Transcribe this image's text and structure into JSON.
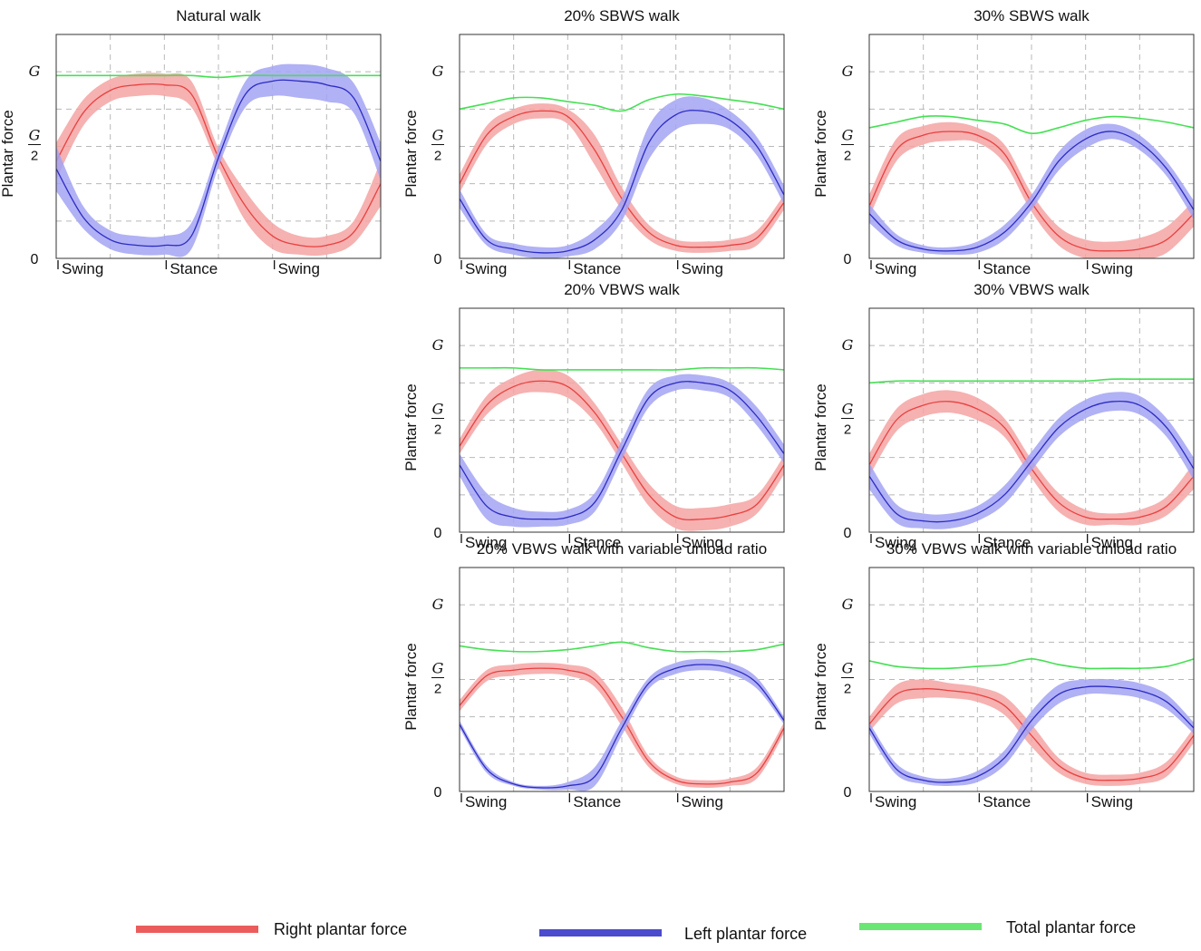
{
  "axis_labels": {
    "ylabel": "Plantar force",
    "y_top": "G",
    "y_mid_num": "G",
    "y_mid_den": "2",
    "y_zero": "0",
    "phases": [
      "Swing",
      "Stance",
      "Swing"
    ]
  },
  "colors": {
    "right": "#e8413f",
    "right_band": "#f4a3a3",
    "left": "#2c2cc4",
    "left_band": "#a3a3f3",
    "total": "#45e053",
    "grid": "#b8b8b8"
  },
  "legend": [
    {
      "key": "right",
      "label": "Right plantar force"
    },
    {
      "key": "left",
      "label": "Left plantar force"
    },
    {
      "key": "total",
      "label": "Total plantar force"
    }
  ],
  "chart_data": [
    {
      "type": "line",
      "title": "Natural walk",
      "xlabel": "",
      "ylabel": "Plantar force",
      "x": [
        0,
        0.25,
        0.5,
        0.75,
        1.0,
        1.25,
        1.5,
        1.75,
        2.0,
        2.25,
        2.5,
        2.75,
        3.0
      ],
      "xlim": [
        0,
        3
      ],
      "ylim": [
        0,
        1.2
      ],
      "series": [
        {
          "name": "Right plantar force",
          "values": [
            0.52,
            0.78,
            0.9,
            0.93,
            0.93,
            0.88,
            0.54,
            0.28,
            0.12,
            0.07,
            0.07,
            0.14,
            0.4
          ],
          "band": [
            0.1,
            0.07,
            0.06,
            0.06,
            0.06,
            0.07,
            0.05,
            0.08,
            0.07,
            0.05,
            0.05,
            0.06,
            0.12
          ]
        },
        {
          "name": "Left plantar force",
          "values": [
            0.48,
            0.22,
            0.1,
            0.07,
            0.07,
            0.12,
            0.54,
            0.88,
            0.95,
            0.95,
            0.93,
            0.86,
            0.52
          ],
          "band": [
            0.12,
            0.06,
            0.05,
            0.05,
            0.05,
            0.07,
            0.05,
            0.07,
            0.08,
            0.09,
            0.09,
            0.08,
            0.1
          ]
        },
        {
          "name": "Total plantar force",
          "values": [
            0.98,
            0.98,
            0.98,
            0.98,
            0.98,
            0.98,
            0.97,
            0.98,
            0.98,
            0.98,
            0.98,
            0.98,
            0.98
          ],
          "band": [
            0,
            0,
            0,
            0,
            0,
            0,
            0,
            0,
            0,
            0,
            0,
            0,
            0
          ]
        }
      ]
    },
    {
      "type": "line",
      "title": "20% SBWS walk",
      "xlabel": "",
      "ylabel": "Plantar force",
      "x": [
        0,
        0.25,
        0.5,
        0.75,
        1.0,
        1.25,
        1.5,
        1.75,
        2.0,
        2.25,
        2.5,
        2.75,
        3.0
      ],
      "xlim": [
        0,
        3
      ],
      "ylim": [
        0,
        1.2
      ],
      "series": [
        {
          "name": "Right plantar force",
          "values": [
            0.4,
            0.66,
            0.76,
            0.79,
            0.76,
            0.58,
            0.32,
            0.14,
            0.07,
            0.06,
            0.07,
            0.11,
            0.3
          ],
          "band": [
            0.05,
            0.05,
            0.04,
            0.04,
            0.04,
            0.08,
            0.06,
            0.04,
            0.03,
            0.03,
            0.03,
            0.04,
            0.04
          ]
        },
        {
          "name": "Left plantar force",
          "values": [
            0.32,
            0.1,
            0.05,
            0.03,
            0.04,
            0.1,
            0.26,
            0.62,
            0.77,
            0.79,
            0.74,
            0.6,
            0.34
          ],
          "band": [
            0.05,
            0.03,
            0.03,
            0.03,
            0.03,
            0.05,
            0.06,
            0.09,
            0.08,
            0.07,
            0.05,
            0.05,
            0.05
          ]
        },
        {
          "name": "Total plantar force",
          "values": [
            0.8,
            0.83,
            0.86,
            0.86,
            0.84,
            0.82,
            0.79,
            0.85,
            0.88,
            0.87,
            0.85,
            0.83,
            0.8
          ],
          "band": [
            0,
            0,
            0,
            0,
            0,
            0,
            0,
            0,
            0,
            0,
            0,
            0,
            0
          ]
        }
      ]
    },
    {
      "type": "line",
      "title": "30% SBWS walk",
      "xlabel": "",
      "ylabel": "Plantar force",
      "x": [
        0,
        0.25,
        0.5,
        0.75,
        1.0,
        1.25,
        1.5,
        1.75,
        2.0,
        2.25,
        2.5,
        2.75,
        3.0
      ],
      "xlim": [
        0,
        3
      ],
      "ylim": [
        0,
        1.2
      ],
      "series": [
        {
          "name": "Right plantar force",
          "values": [
            0.28,
            0.58,
            0.66,
            0.68,
            0.66,
            0.56,
            0.3,
            0.12,
            0.05,
            0.04,
            0.05,
            0.1,
            0.24
          ],
          "band": [
            0.06,
            0.06,
            0.05,
            0.05,
            0.04,
            0.05,
            0.05,
            0.05,
            0.05,
            0.05,
            0.06,
            0.07,
            0.07
          ]
        },
        {
          "name": "Left plantar force",
          "values": [
            0.24,
            0.1,
            0.05,
            0.04,
            0.06,
            0.14,
            0.3,
            0.52,
            0.64,
            0.68,
            0.62,
            0.48,
            0.26
          ],
          "band": [
            0.05,
            0.03,
            0.02,
            0.02,
            0.03,
            0.04,
            0.04,
            0.05,
            0.05,
            0.04,
            0.04,
            0.04,
            0.05
          ]
        },
        {
          "name": "Total plantar force",
          "values": [
            0.7,
            0.73,
            0.76,
            0.76,
            0.74,
            0.72,
            0.67,
            0.7,
            0.74,
            0.76,
            0.75,
            0.73,
            0.7
          ],
          "band": [
            0,
            0,
            0,
            0,
            0,
            0,
            0,
            0,
            0,
            0,
            0,
            0,
            0
          ]
        }
      ]
    },
    {
      "type": "line",
      "title": "20% VBWS walk",
      "xlabel": "",
      "ylabel": "Plantar force",
      "x": [
        0,
        0.25,
        0.5,
        0.75,
        1.0,
        1.25,
        1.5,
        1.75,
        2.0,
        2.25,
        2.5,
        2.75,
        3.0
      ],
      "xlim": [
        0,
        3
      ],
      "ylim": [
        0,
        1.2
      ],
      "series": [
        {
          "name": "Right plantar force",
          "values": [
            0.46,
            0.68,
            0.78,
            0.81,
            0.78,
            0.64,
            0.42,
            0.2,
            0.08,
            0.07,
            0.09,
            0.15,
            0.36
          ],
          "band": [
            0.04,
            0.05,
            0.05,
            0.06,
            0.06,
            0.05,
            0.05,
            0.06,
            0.06,
            0.06,
            0.06,
            0.05,
            0.05
          ]
        },
        {
          "name": "Left plantar force",
          "values": [
            0.36,
            0.14,
            0.08,
            0.07,
            0.08,
            0.16,
            0.44,
            0.72,
            0.8,
            0.8,
            0.76,
            0.62,
            0.42
          ],
          "band": [
            0.06,
            0.07,
            0.05,
            0.04,
            0.04,
            0.05,
            0.05,
            0.05,
            0.04,
            0.04,
            0.04,
            0.05,
            0.05
          ]
        },
        {
          "name": "Total plantar force",
          "values": [
            0.88,
            0.88,
            0.88,
            0.87,
            0.87,
            0.87,
            0.87,
            0.87,
            0.87,
            0.88,
            0.88,
            0.88,
            0.87
          ],
          "band": [
            0,
            0,
            0,
            0,
            0,
            0,
            0,
            0,
            0,
            0,
            0,
            0,
            0
          ]
        }
      ]
    },
    {
      "type": "line",
      "title": "30% VBWS walk",
      "xlabel": "",
      "ylabel": "Plantar force",
      "x": [
        0,
        0.25,
        0.5,
        0.75,
        1.0,
        1.25,
        1.5,
        1.75,
        2.0,
        2.25,
        2.5,
        2.75,
        3.0
      ],
      "xlim": [
        0,
        3
      ],
      "ylim": [
        0,
        1.2
      ],
      "series": [
        {
          "name": "Right plantar force",
          "values": [
            0.36,
            0.6,
            0.68,
            0.7,
            0.66,
            0.56,
            0.34,
            0.16,
            0.08,
            0.07,
            0.08,
            0.14,
            0.3
          ],
          "band": [
            0.06,
            0.06,
            0.06,
            0.06,
            0.06,
            0.05,
            0.05,
            0.05,
            0.04,
            0.03,
            0.04,
            0.05,
            0.07
          ]
        },
        {
          "name": "Left plantar force",
          "values": [
            0.3,
            0.1,
            0.06,
            0.06,
            0.1,
            0.2,
            0.38,
            0.56,
            0.66,
            0.7,
            0.68,
            0.56,
            0.34
          ],
          "band": [
            0.07,
            0.05,
            0.04,
            0.04,
            0.04,
            0.05,
            0.05,
            0.05,
            0.05,
            0.05,
            0.05,
            0.05,
            0.06
          ]
        },
        {
          "name": "Total plantar force",
          "values": [
            0.8,
            0.81,
            0.81,
            0.81,
            0.81,
            0.81,
            0.81,
            0.81,
            0.81,
            0.82,
            0.82,
            0.82,
            0.82
          ],
          "band": [
            0,
            0,
            0,
            0,
            0,
            0,
            0,
            0,
            0,
            0,
            0,
            0,
            0
          ]
        }
      ]
    },
    {
      "type": "line",
      "title": "20% VBWS walk with variable unload ratio",
      "xlabel": "",
      "ylabel": "Plantar force",
      "x": [
        0,
        0.25,
        0.5,
        0.75,
        1.0,
        1.25,
        1.5,
        1.75,
        2.0,
        2.25,
        2.5,
        2.75,
        3.0
      ],
      "xlim": [
        0,
        3
      ],
      "ylim": [
        0,
        1.2
      ],
      "series": [
        {
          "name": "Right plantar force",
          "values": [
            0.46,
            0.62,
            0.65,
            0.66,
            0.65,
            0.6,
            0.4,
            0.16,
            0.06,
            0.04,
            0.05,
            0.1,
            0.34
          ],
          "band": [
            0.03,
            0.03,
            0.03,
            0.03,
            0.03,
            0.04,
            0.05,
            0.03,
            0.02,
            0.02,
            0.02,
            0.03,
            0.03
          ]
        },
        {
          "name": "Left plantar force",
          "values": [
            0.36,
            0.12,
            0.04,
            0.02,
            0.03,
            0.08,
            0.34,
            0.58,
            0.66,
            0.68,
            0.66,
            0.58,
            0.38
          ],
          "band": [
            0.02,
            0.02,
            0.01,
            0.01,
            0.02,
            0.05,
            0.04,
            0.03,
            0.03,
            0.03,
            0.03,
            0.03,
            0.02
          ]
        },
        {
          "name": "Total plantar force",
          "values": [
            0.78,
            0.76,
            0.75,
            0.75,
            0.76,
            0.78,
            0.8,
            0.77,
            0.75,
            0.75,
            0.75,
            0.76,
            0.79
          ],
          "band": [
            0,
            0,
            0,
            0,
            0,
            0,
            0,
            0,
            0,
            0,
            0,
            0,
            0
          ]
        }
      ]
    },
    {
      "type": "line",
      "title": "30% VBWS walk with variable unload ratio",
      "xlabel": "",
      "ylabel": "Plantar force",
      "x": [
        0,
        0.25,
        0.5,
        0.75,
        1.0,
        1.25,
        1.5,
        1.75,
        2.0,
        2.25,
        2.5,
        2.75,
        3.0
      ],
      "xlim": [
        0,
        3
      ],
      "ylim": [
        0,
        1.2
      ],
      "series": [
        {
          "name": "Right plantar force",
          "values": [
            0.36,
            0.52,
            0.55,
            0.54,
            0.52,
            0.46,
            0.3,
            0.14,
            0.07,
            0.06,
            0.07,
            0.12,
            0.3
          ],
          "band": [
            0.04,
            0.05,
            0.05,
            0.04,
            0.04,
            0.05,
            0.06,
            0.04,
            0.03,
            0.03,
            0.03,
            0.04,
            0.04
          ]
        },
        {
          "name": "Left plantar force",
          "values": [
            0.34,
            0.12,
            0.06,
            0.05,
            0.08,
            0.18,
            0.38,
            0.52,
            0.56,
            0.56,
            0.54,
            0.48,
            0.34
          ],
          "band": [
            0.03,
            0.03,
            0.02,
            0.02,
            0.03,
            0.04,
            0.05,
            0.05,
            0.04,
            0.04,
            0.04,
            0.04,
            0.03
          ]
        },
        {
          "name": "Total plantar force",
          "values": [
            0.7,
            0.67,
            0.66,
            0.66,
            0.67,
            0.68,
            0.71,
            0.68,
            0.66,
            0.66,
            0.66,
            0.67,
            0.71
          ],
          "band": [
            0,
            0,
            0,
            0,
            0,
            0,
            0,
            0,
            0,
            0,
            0,
            0,
            0
          ]
        }
      ]
    }
  ]
}
